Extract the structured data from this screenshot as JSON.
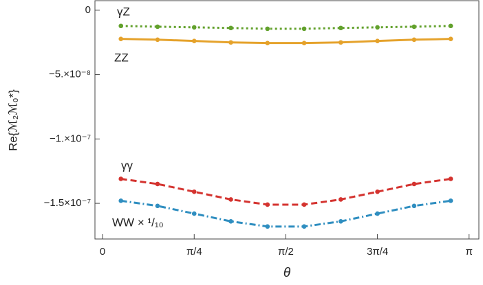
{
  "chart_data": {
    "type": "line",
    "xlabel": "θ",
    "ylabel": "Re{ℳ₂ℳ₀*}",
    "xlim": [
      -0.0654,
      3.2256
    ],
    "ylim": [
      7.4e-09,
      -1.777e-07
    ],
    "xticks": [
      0,
      {
        "value": 0.7854,
        "label": "π/4"
      },
      {
        "value": 1.5708,
        "label": "π/2"
      },
      {
        "value": 2.3562,
        "label": "3π/4"
      },
      {
        "value": 3.1416,
        "label": "π"
      }
    ],
    "yticks": [
      0,
      {
        "value": -5e-08,
        "label": "−5.×10⁻⁸"
      },
      {
        "value": -1e-07,
        "label": "−1.×10⁻⁷"
      },
      {
        "value": -1.5e-07,
        "label": "−1.5×10⁻⁷"
      }
    ],
    "x": [
      0.1571,
      0.4712,
      0.7854,
      1.0996,
      1.4137,
      1.7279,
      2.042,
      2.3562,
      2.6704,
      2.9845
    ],
    "series": [
      {
        "name": "γZ",
        "color": "#62a12c",
        "linestyle": "dotted",
        "values": [
          -1.22e-08,
          -1.28e-08,
          -1.33e-08,
          -1.38e-08,
          -1.44e-08,
          -1.44e-08,
          -1.38e-08,
          -1.33e-08,
          -1.28e-08,
          -1.22e-08
        ]
      },
      {
        "name": "ZZ",
        "color": "#e5a22b",
        "linestyle": "solid",
        "values": [
          -2.23e-08,
          -2.29e-08,
          -2.39e-08,
          -2.5e-08,
          -2.55e-08,
          -2.55e-08,
          -2.5e-08,
          -2.39e-08,
          -2.29e-08,
          -2.23e-08
        ]
      },
      {
        "name": "γγ",
        "color": "#d4332f",
        "linestyle": "dashed",
        "values": [
          -1.31e-07,
          -1.35e-07,
          -1.41e-07,
          -1.47e-07,
          -1.51e-07,
          -1.51e-07,
          -1.47e-07,
          -1.41e-07,
          -1.35e-07,
          -1.31e-07
        ]
      },
      {
        "name": "WW × ¹/₁₀",
        "color": "#2f8ec0",
        "linestyle": "dashdot",
        "values": [
          -1.48e-07,
          -1.52e-07,
          -1.58e-07,
          -1.64e-07,
          -1.68e-07,
          -1.68e-07,
          -1.64e-07,
          -1.58e-07,
          -1.52e-07,
          -1.48e-07
        ]
      }
    ]
  }
}
